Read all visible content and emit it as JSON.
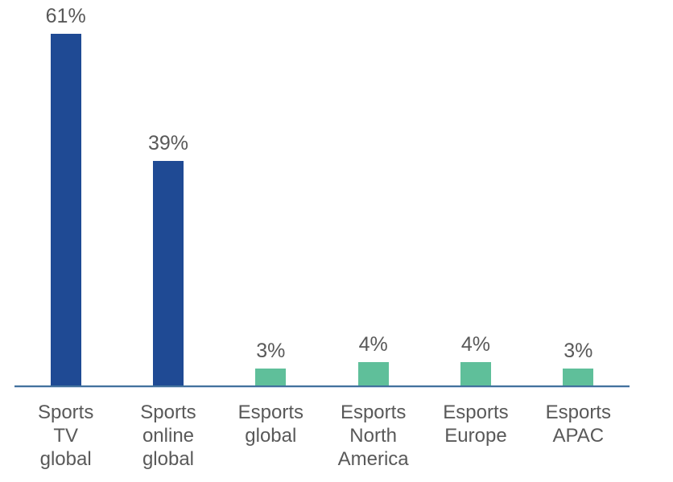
{
  "chart_data": {
    "type": "bar",
    "title": "",
    "xlabel": "",
    "ylabel": "",
    "legend": "none",
    "grid": false,
    "ylim": [
      0,
      66
    ],
    "categories": [
      "Sports TV global",
      "Sports online global",
      "Esports global",
      "Esports North America",
      "Esports Europe",
      "Esports APAC"
    ],
    "category_display": [
      "Sports\nTV\nglobal",
      "Sports\nonline\nglobal",
      "Esports\nglobal",
      "Esports\nNorth\nAmerica",
      "Esports\nEurope",
      "Esports\nAPAC"
    ],
    "values": [
      61,
      39,
      3,
      4,
      4,
      3
    ],
    "value_labels": [
      "61%",
      "39%",
      "3%",
      "4%",
      "4%",
      "3%"
    ],
    "bar_colors": [
      "#1F4A94",
      "#1F4A94",
      "#5FBF9A",
      "#5FBF9A",
      "#5FBF9A",
      "#5FBF9A"
    ],
    "series_colors": {
      "sports": "#1F4A94",
      "esports": "#5FBF9A"
    },
    "label_color": "#595959",
    "axis_line_color": "#41719C"
  }
}
